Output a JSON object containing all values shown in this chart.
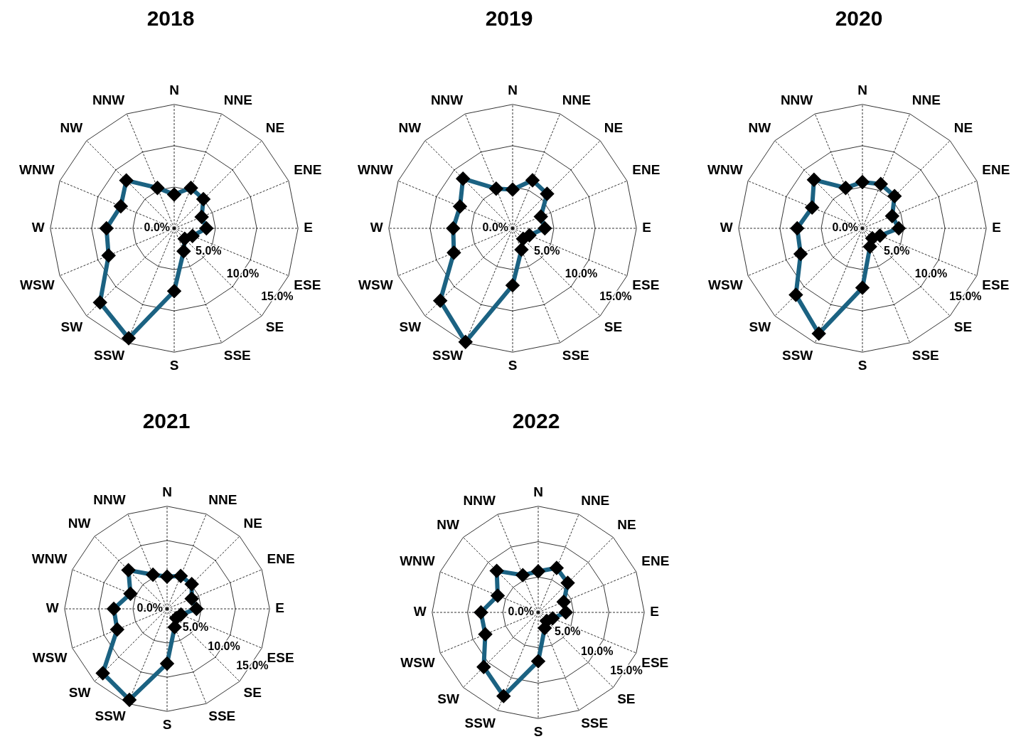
{
  "chart_data": [
    {
      "type": "radar",
      "title": "2018",
      "categories": [
        "N",
        "NNE",
        "NE",
        "ENE",
        "E",
        "ESE",
        "SE",
        "SSE",
        "S",
        "SSW",
        "SW",
        "WSW",
        "W",
        "WNW",
        "NW",
        "NNW"
      ],
      "series": [
        {
          "color": "#1b6282",
          "values": [
            4.1,
            5.3,
            5.0,
            3.6,
            3.9,
            2.4,
            1.8,
            3.0,
            7.6,
            14.4,
            12.7,
            8.6,
            8.2,
            7.0,
            8.2,
            5.3
          ]
        }
      ],
      "ylim": [
        0,
        15
      ],
      "yticks": [
        {
          "value": 0,
          "label": "0.0%"
        },
        {
          "value": 5,
          "label": "5.0%"
        },
        {
          "value": 10,
          "label": "10.0%"
        },
        {
          "value": 15,
          "label": "15.0%"
        }
      ],
      "grid": true,
      "marker": "diamond",
      "line_style": "solid"
    },
    {
      "type": "radar",
      "title": "2019",
      "categories": [
        "N",
        "NNE",
        "NE",
        "ENE",
        "E",
        "ESE",
        "SE",
        "SSE",
        "S",
        "SSW",
        "SW",
        "WSW",
        "W",
        "WNW",
        "NW",
        "NNW"
      ],
      "series": [
        {
          "color": "#1b6282",
          "values": [
            4.7,
            6.3,
            5.9,
            3.7,
            3.9,
            2.2,
            1.8,
            2.8,
            6.9,
            14.9,
            12.4,
            7.7,
            7.2,
            6.9,
            8.5,
            5.2
          ]
        }
      ],
      "ylim": [
        0,
        15
      ],
      "yticks": [
        {
          "value": 0,
          "label": "0.0%"
        },
        {
          "value": 5,
          "label": "5.0%"
        },
        {
          "value": 10,
          "label": "10.0%"
        },
        {
          "value": 15,
          "label": "15.0%"
        }
      ],
      "grid": true,
      "marker": "diamond",
      "line_style": "solid"
    },
    {
      "type": "radar",
      "title": "2020",
      "categories": [
        "N",
        "NNE",
        "NE",
        "ENE",
        "E",
        "ESE",
        "SE",
        "SSE",
        "S",
        "SSW",
        "SW",
        "WSW",
        "W",
        "WNW",
        "NW",
        "NNW"
      ],
      "series": [
        {
          "color": "#1b6282",
          "values": [
            5.6,
            5.8,
            5.5,
            3.9,
            4.4,
            2.3,
            1.7,
            2.4,
            7.2,
            13.8,
            11.4,
            8.1,
            7.9,
            6.6,
            8.3,
            5.3
          ]
        }
      ],
      "ylim": [
        0,
        15
      ],
      "yticks": [
        {
          "value": 0,
          "label": "0.0%"
        },
        {
          "value": 5,
          "label": "5.0%"
        },
        {
          "value": 10,
          "label": "10.0%"
        },
        {
          "value": 15,
          "label": "15.0%"
        }
      ],
      "grid": true,
      "marker": "diamond",
      "line_style": "solid"
    },
    {
      "type": "radar",
      "title": "2021",
      "categories": [
        "N",
        "NNE",
        "NE",
        "ENE",
        "E",
        "ESE",
        "SE",
        "SSE",
        "S",
        "SSW",
        "SW",
        "WSW",
        "W",
        "WNW",
        "NW",
        "NNW"
      ],
      "series": [
        {
          "color": "#1b6282",
          "values": [
            4.7,
            5.2,
            5.1,
            3.9,
            4.3,
            2.2,
            1.9,
            2.9,
            8.0,
            14.4,
            13.3,
            7.9,
            7.8,
            5.8,
            8.0,
            5.4
          ]
        }
      ],
      "ylim": [
        0,
        15
      ],
      "yticks": [
        {
          "value": 0,
          "label": "0.0%"
        },
        {
          "value": 5,
          "label": "5.0%"
        },
        {
          "value": 10,
          "label": "10.0%"
        },
        {
          "value": 15,
          "label": "15.0%"
        }
      ],
      "grid": true,
      "marker": "diamond",
      "line_style": "solid"
    },
    {
      "type": "radar",
      "title": "2022",
      "categories": [
        "N",
        "NNE",
        "NE",
        "ENE",
        "E",
        "ESE",
        "SE",
        "SSE",
        "S",
        "SSW",
        "SW",
        "WSW",
        "W",
        "WNW",
        "NW",
        "NNW"
      ],
      "series": [
        {
          "color": "#1b6282",
          "values": [
            5.8,
            6.8,
            5.9,
            3.9,
            3.9,
            2.2,
            1.7,
            2.4,
            6.9,
            12.8,
            10.9,
            8.1,
            8.1,
            6.2,
            8.3,
            5.7
          ]
        }
      ],
      "ylim": [
        0,
        15
      ],
      "yticks": [
        {
          "value": 0,
          "label": "0.0%"
        },
        {
          "value": 5,
          "label": "5.0%"
        },
        {
          "value": 10,
          "label": "10.0%"
        },
        {
          "value": 15,
          "label": "15.0%"
        }
      ],
      "grid": true,
      "marker": "diamond",
      "line_style": "solid"
    }
  ]
}
